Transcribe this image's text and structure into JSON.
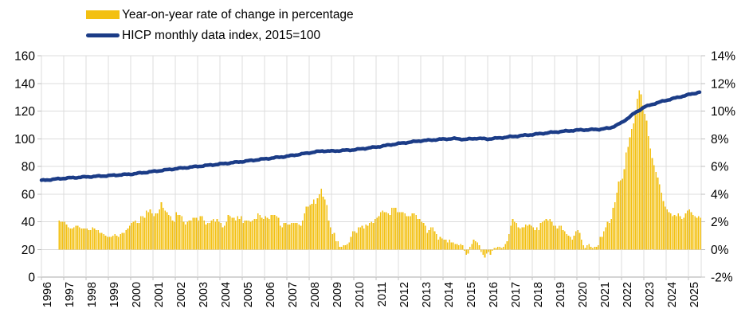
{
  "chart_data": {
    "type": "bar",
    "combo": "bar + line (dual axis)",
    "title": "",
    "legend_position": "top-left",
    "grid": true,
    "colors": {
      "bar": "#F3C012",
      "line": "#1B3C87",
      "gridline": "#DCDCDC",
      "axis_line": "#A9A9A9",
      "tick": "#BFBFBF",
      "text": "#000000",
      "background": "#FFFFFF"
    },
    "legend": [
      {
        "label": "Year-on-year rate of change in percentage",
        "series_type": "bar",
        "color": "#F3C012"
      },
      {
        "label": "HICP monthly data index, 2015=100",
        "series_type": "line",
        "color": "#1B3C87"
      }
    ],
    "left_axis": {
      "min": 0,
      "max": 160,
      "step": 20,
      "tick_labels": [
        "0",
        "20",
        "40",
        "60",
        "80",
        "100",
        "120",
        "140",
        "160"
      ]
    },
    "right_axis": {
      "min": -2,
      "max": 14,
      "step": 2,
      "tick_labels": [
        "-2%",
        "0%",
        "2%",
        "4%",
        "6%",
        "8%",
        "10%",
        "12%",
        "14%"
      ]
    },
    "x_axis": {
      "tick_labels": [
        "1996",
        "1997",
        "1998",
        "1999",
        "2000",
        "2001",
        "2002",
        "2003",
        "2004",
        "2005",
        "2006",
        "2007",
        "2008",
        "2009",
        "2010",
        "2011",
        "2012",
        "2013",
        "2014",
        "2015",
        "2016",
        "2017",
        "2018",
        "2019",
        "2020",
        "2021",
        "2022",
        "2023",
        "2024",
        "2025"
      ]
    },
    "series": [
      {
        "name": "Year-on-year rate of change in percentage",
        "type": "bar",
        "axis": "right",
        "unit": "%",
        "frequency": "monthly",
        "start": "1996-10",
        "end": "2025-07",
        "values": [
          2.1,
          2.0,
          2.0,
          2.0,
          1.8,
          1.6,
          1.5,
          1.5,
          1.6,
          1.7,
          1.7,
          1.6,
          1.5,
          1.5,
          1.5,
          1.5,
          1.4,
          1.4,
          1.6,
          1.5,
          1.4,
          1.4,
          1.2,
          1.2,
          1.1,
          1.0,
          0.9,
          0.9,
          0.9,
          1.0,
          1.1,
          1.0,
          0.9,
          1.1,
          1.2,
          1.2,
          1.4,
          1.5,
          1.7,
          1.9,
          2.0,
          2.1,
          1.9,
          1.9,
          2.4,
          2.4,
          2.3,
          2.8,
          2.7,
          2.9,
          2.6,
          2.4,
          2.6,
          2.6,
          2.9,
          3.4,
          3.0,
          2.8,
          2.7,
          2.5,
          2.4,
          2.1,
          2.0,
          2.7,
          2.5,
          2.5,
          2.4,
          2.0,
          1.8,
          2.0,
          2.1,
          2.1,
          2.3,
          2.3,
          2.3,
          2.1,
          2.4,
          2.4,
          2.1,
          1.8,
          1.9,
          1.9,
          2.1,
          2.2,
          2.0,
          2.2,
          2.0,
          1.9,
          1.6,
          1.7,
          2.0,
          2.5,
          2.4,
          2.3,
          2.3,
          2.1,
          2.4,
          2.2,
          2.4,
          1.9,
          2.1,
          2.1,
          2.1,
          2.0,
          2.1,
          2.2,
          2.2,
          2.6,
          2.5,
          2.3,
          2.2,
          2.4,
          2.3,
          2.2,
          2.5,
          2.5,
          2.5,
          2.4,
          2.3,
          1.7,
          1.6,
          1.9,
          1.9,
          1.8,
          1.8,
          1.9,
          1.9,
          1.9,
          1.9,
          1.8,
          1.7,
          2.1,
          2.6,
          3.1,
          3.1,
          3.2,
          3.3,
          3.6,
          3.3,
          3.7,
          4.0,
          4.4,
          3.8,
          3.6,
          3.2,
          2.1,
          1.6,
          1.1,
          1.2,
          0.6,
          0.6,
          0.2,
          0.2,
          0.3,
          0.3,
          0.4,
          0.5,
          0.9,
          1.3,
          1.3,
          1.2,
          1.6,
          1.6,
          1.7,
          1.5,
          1.8,
          1.7,
          1.9,
          2.0,
          1.9,
          2.2,
          2.3,
          2.4,
          2.7,
          2.8,
          2.7,
          2.7,
          2.6,
          2.5,
          3.0,
          3.0,
          3.0,
          2.7,
          2.7,
          2.7,
          2.7,
          2.6,
          2.4,
          2.4,
          2.4,
          2.6,
          2.6,
          2.5,
          2.2,
          2.2,
          2.0,
          1.9,
          1.7,
          1.2,
          1.4,
          1.6,
          1.6,
          1.3,
          1.1,
          0.7,
          0.9,
          0.8,
          0.7,
          0.7,
          0.5,
          0.7,
          0.5,
          0.5,
          0.4,
          0.4,
          0.3,
          0.4,
          0.3,
          -0.1,
          -0.4,
          -0.3,
          0.2,
          0.4,
          0.7,
          0.6,
          0.5,
          0.3,
          -0.2,
          -0.4,
          -0.6,
          -0.3,
          -0.2,
          -0.4,
          -0.1,
          0.1,
          0.1,
          0.2,
          0.2,
          0.1,
          0.2,
          0.4,
          0.6,
          1.1,
          1.7,
          2.2,
          2.0,
          1.9,
          1.6,
          1.5,
          1.6,
          1.6,
          1.8,
          1.7,
          1.8,
          1.7,
          1.6,
          1.4,
          1.6,
          1.4,
          1.9,
          2.0,
          2.1,
          2.2,
          2.1,
          2.2,
          2.0,
          1.7,
          1.7,
          1.5,
          1.7,
          1.7,
          1.4,
          1.3,
          1.1,
          1.0,
          0.9,
          0.7,
          1.0,
          1.3,
          1.4,
          1.2,
          0.7,
          0.3,
          0.1,
          0.3,
          0.4,
          0.2,
          0.1,
          0.2,
          0.2,
          0.3,
          0.9,
          0.9,
          1.3,
          1.6,
          2.0,
          1.9,
          2.2,
          3.0,
          3.4,
          4.1,
          4.9,
          5.0,
          5.1,
          5.8,
          7.0,
          7.4,
          8.1,
          8.7,
          9.1,
          9.7,
          10.9,
          11.5,
          11.2,
          10.4,
          9.8,
          9.3,
          8.2,
          7.3,
          6.6,
          6.1,
          5.6,
          5.2,
          4.7,
          4.1,
          3.5,
          3.1,
          2.9,
          2.7,
          2.6,
          2.4,
          2.5,
          2.4,
          2.6,
          2.4,
          2.2,
          2.3,
          2.6,
          2.8,
          2.9,
          2.7,
          2.5,
          2.4,
          2.3,
          2.4,
          2.3
        ]
      },
      {
        "name": "HICP monthly data index, 2015=100",
        "type": "line",
        "axis": "left",
        "frequency": "monthly",
        "start": "1996-01",
        "end": "2025-07",
        "anchor_points": [
          [
            1996.0,
            69.8
          ],
          [
            1997.0,
            71.4
          ],
          [
            1998.0,
            72.4
          ],
          [
            1999.0,
            73.3
          ],
          [
            2000.0,
            74.4
          ],
          [
            2001.0,
            76.3
          ],
          [
            2002.0,
            78.3
          ],
          [
            2003.0,
            80.0
          ],
          [
            2004.0,
            81.7
          ],
          [
            2005.0,
            83.5
          ],
          [
            2006.0,
            85.4
          ],
          [
            2007.0,
            87.3
          ],
          [
            2008.0,
            89.8
          ],
          [
            2008.6,
            91.2
          ],
          [
            2009.0,
            91.0
          ],
          [
            2010.0,
            92.0
          ],
          [
            2011.0,
            94.0
          ],
          [
            2012.0,
            96.5
          ],
          [
            2013.0,
            98.5
          ],
          [
            2014.0,
            99.7
          ],
          [
            2014.5,
            100.1
          ],
          [
            2015.0,
            99.5
          ],
          [
            2015.5,
            100.3
          ],
          [
            2016.0,
            99.8
          ],
          [
            2016.5,
            100.5
          ],
          [
            2017.0,
            101.4
          ],
          [
            2018.0,
            103.0
          ],
          [
            2019.0,
            104.8
          ],
          [
            2020.0,
            106.2
          ],
          [
            2021.0,
            106.8
          ],
          [
            2021.5,
            107.8
          ],
          [
            2022.0,
            111.5
          ],
          [
            2022.5,
            117.5
          ],
          [
            2023.0,
            122.8
          ],
          [
            2023.5,
            125.5
          ],
          [
            2024.0,
            127.8
          ],
          [
            2024.5,
            129.8
          ],
          [
            2025.0,
            131.8
          ],
          [
            2025.58,
            134.0
          ]
        ]
      }
    ]
  }
}
